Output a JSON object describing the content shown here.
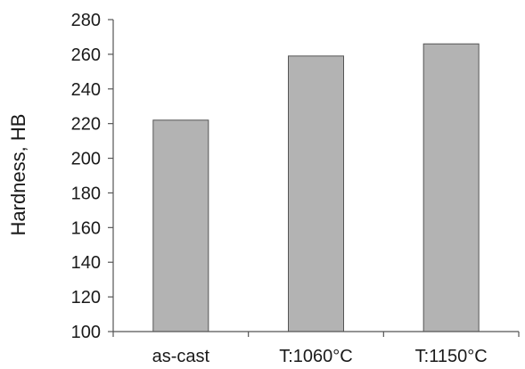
{
  "chart_data": {
    "type": "bar",
    "categories": [
      "as-cast",
      "T:1060°C",
      "T:1150°C"
    ],
    "values": [
      222,
      259,
      266
    ],
    "title": "",
    "xlabel": "",
    "ylabel": "Hardness, HB",
    "ylim": [
      100,
      280
    ],
    "yticks": [
      100,
      120,
      140,
      160,
      180,
      200,
      220,
      240,
      260,
      280
    ],
    "grid": false,
    "legend": "none",
    "colors": {
      "bar_fill": "#b3b3b3",
      "bar_stroke": "#555555",
      "axis": "#555555",
      "text": "#1a1a1a"
    }
  }
}
